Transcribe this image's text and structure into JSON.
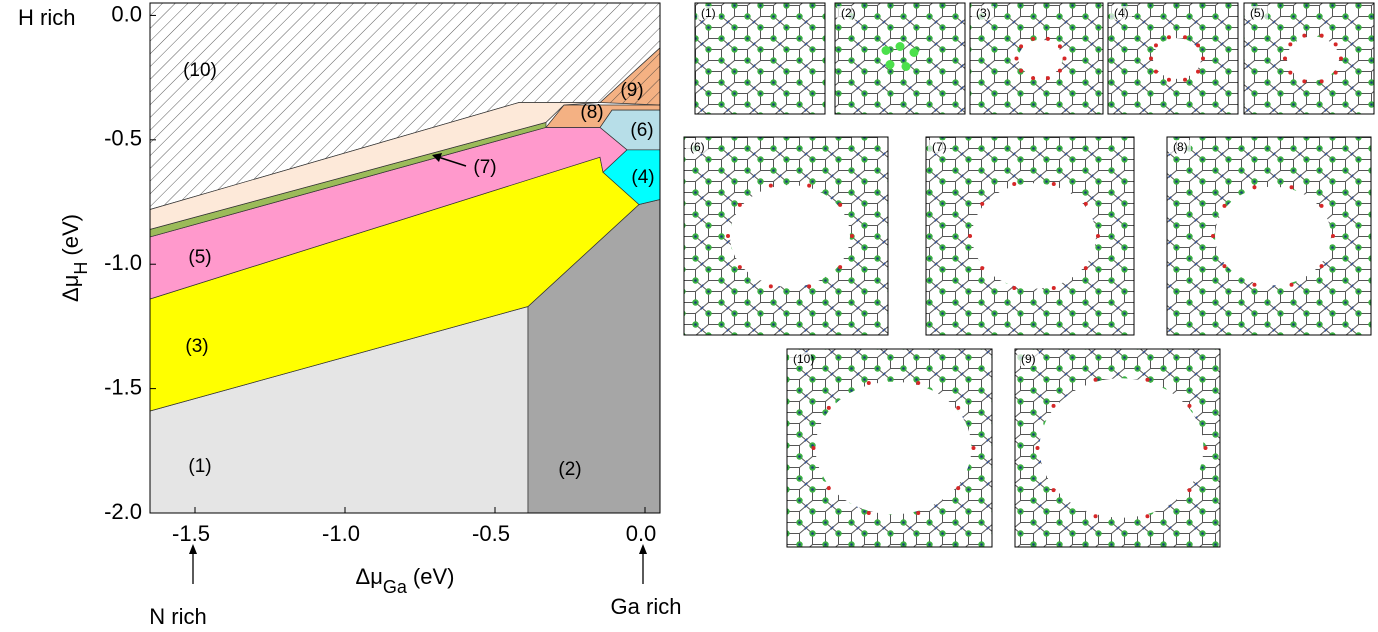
{
  "chart_data": {
    "type": "phase-diagram",
    "xlabel_parts": [
      "Δμ",
      "Ga",
      "(eV)"
    ],
    "ylabel_parts": [
      "Δμ",
      "H",
      "(eV)"
    ],
    "annotations": {
      "top": "H rich",
      "left": "N rich",
      "right": "Ga rich"
    },
    "xlim": [
      -1.65,
      0.05
    ],
    "ylim": [
      -2.0,
      0.05
    ],
    "xticks": [
      -1.5,
      {
        "value": -1,
        "label": "-1.0"
      },
      -0.5,
      {
        "value": 0,
        "label": "0.0"
      }
    ],
    "yticks": [
      {
        "value": 0,
        "label": "0.0"
      },
      -0.5,
      {
        "value": -1,
        "label": "-1.0"
      },
      -1.5,
      {
        "value": -2,
        "label": "-2.0"
      }
    ],
    "regions": [
      {
        "label": "(1)",
        "color": "#e5e5e5",
        "points": [
          [
            -1.65,
            -1.59
          ],
          [
            -0.39,
            -1.17
          ],
          [
            -0.39,
            -2.0
          ],
          [
            -1.65,
            -2.0
          ]
        ]
      },
      {
        "label": "(2)",
        "color": "#a6a6a6",
        "points": [
          [
            -0.39,
            -1.17
          ],
          [
            -0.02,
            -0.76
          ],
          [
            0.05,
            -0.74
          ],
          [
            0.05,
            -2.0
          ],
          [
            -0.39,
            -2.0
          ]
        ]
      },
      {
        "label": "(3)",
        "color": "#ffff00",
        "points": [
          [
            -1.65,
            -1.14
          ],
          [
            -0.15,
            -0.57
          ],
          [
            -0.14,
            -0.63
          ],
          [
            -0.02,
            -0.76
          ],
          [
            -0.39,
            -1.17
          ],
          [
            -1.65,
            -1.59
          ]
        ]
      },
      {
        "label": "(4)",
        "color": "#00ffff",
        "points": [
          [
            -0.14,
            -0.63
          ],
          [
            -0.06,
            -0.54
          ],
          [
            0.05,
            -0.54
          ],
          [
            0.05,
            -0.74
          ],
          [
            -0.02,
            -0.76
          ]
        ]
      },
      {
        "label": "(5)",
        "color": "#ff99cc",
        "points": [
          [
            -1.65,
            -0.89
          ],
          [
            -0.33,
            -0.45
          ],
          [
            -0.15,
            -0.45
          ],
          [
            -0.06,
            -0.54
          ],
          [
            -0.14,
            -0.63
          ],
          [
            -0.15,
            -0.57
          ],
          [
            -1.65,
            -1.14
          ]
        ]
      },
      {
        "label": "(6)",
        "color": "#b7dee8",
        "points": [
          [
            -0.15,
            -0.45
          ],
          [
            -0.11,
            -0.38
          ],
          [
            0.05,
            -0.38
          ],
          [
            0.05,
            -0.54
          ],
          [
            -0.06,
            -0.54
          ]
        ]
      },
      {
        "label": "(7)",
        "color": "#9bbb59",
        "points": [
          [
            -1.65,
            -0.86
          ],
          [
            -0.33,
            -0.43
          ],
          [
            -0.33,
            -0.45
          ],
          [
            -1.65,
            -0.89
          ]
        ]
      },
      {
        "label": "(8)",
        "color": "#f4b183",
        "points": [
          [
            -0.33,
            -0.45
          ],
          [
            -0.27,
            -0.36
          ],
          [
            0.05,
            -0.36
          ],
          [
            0.05,
            -0.38
          ],
          [
            -0.11,
            -0.38
          ],
          [
            -0.15,
            -0.45
          ]
        ]
      },
      {
        "label": "(9)",
        "color": "#f4b183",
        "hatch": true,
        "points": [
          [
            -0.15,
            -0.35
          ],
          [
            0.05,
            -0.13
          ],
          [
            0.05,
            -0.36
          ]
        ]
      },
      {
        "label": "(10)",
        "color": "#ffffff",
        "hatch": true,
        "points": [
          [
            -1.65,
            -0.78
          ],
          [
            -0.42,
            -0.35
          ],
          [
            -0.15,
            -0.35
          ],
          [
            0.05,
            -0.13
          ],
          [
            0.05,
            0.05
          ],
          [
            -1.65,
            0.05
          ]
        ]
      },
      {
        "color": "#fde9d9",
        "points": [
          [
            -1.65,
            -0.78
          ],
          [
            -0.42,
            -0.35
          ],
          [
            -0.15,
            -0.35
          ],
          [
            -0.27,
            -0.36
          ],
          [
            -0.33,
            -0.43
          ],
          [
            -1.65,
            -0.86
          ]
        ]
      }
    ],
    "panels": [
      {
        "label": "(1)"
      },
      {
        "label": "(2)"
      },
      {
        "label": "(3)"
      },
      {
        "label": "(4)"
      },
      {
        "label": "(5)"
      },
      {
        "label": "(6)"
      },
      {
        "label": "(7)"
      },
      {
        "label": "(8)"
      },
      {
        "label": "(10)"
      },
      {
        "label": "(9)"
      }
    ]
  }
}
